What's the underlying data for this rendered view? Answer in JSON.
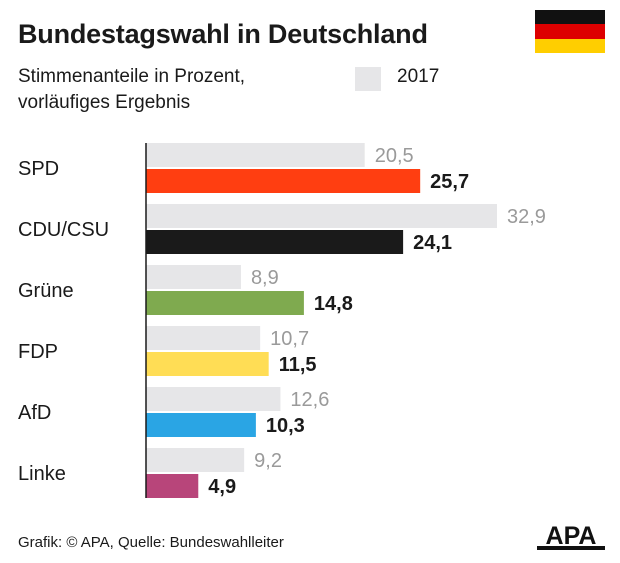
{
  "header": {
    "title": "Bundestagswahl in Deutschland",
    "subtitle_line1": "Stimmenanteile in Prozent,",
    "subtitle_line2": "vorläufiges Ergebnis"
  },
  "flag_colors": [
    "#111111",
    "#dd0000",
    "#ffce00"
  ],
  "legend": {
    "label": "2017",
    "color": "#e6e6e8"
  },
  "footer": {
    "credit": "Grafik: © APA, Quelle: Bundeswahlleiter"
  },
  "logo": {
    "text": "APA",
    "color": "#111111"
  },
  "chart_data": {
    "type": "bar",
    "orientation": "horizontal",
    "categories": [
      "SPD",
      "CDU/CSU",
      "Grüne",
      "FDP",
      "AfD",
      "Linke"
    ],
    "series": [
      {
        "name": "2017",
        "values": [
          20.5,
          32.9,
          8.9,
          10.7,
          12.6,
          9.2
        ],
        "labels": [
          "20,5",
          "32,9",
          "8,9",
          "10,7",
          "12,6",
          "9,2"
        ],
        "color": "#e6e6e8",
        "label_color": "#9a9a9a"
      },
      {
        "values": [
          25.7,
          24.1,
          14.8,
          11.5,
          10.3,
          4.9
        ],
        "labels": [
          "25,7",
          "24,1",
          "14,8",
          "11,5",
          "10,3",
          "4,9"
        ],
        "colors": [
          "#ff3e11",
          "#1a1a1a",
          "#7faa4f",
          "#ffdd55",
          "#2aa5e4",
          "#b8457a"
        ],
        "label_color": "#1a1a1a"
      }
    ],
    "xlim": [
      0,
      32.9
    ],
    "grid": false,
    "legend_position": "top-right"
  }
}
